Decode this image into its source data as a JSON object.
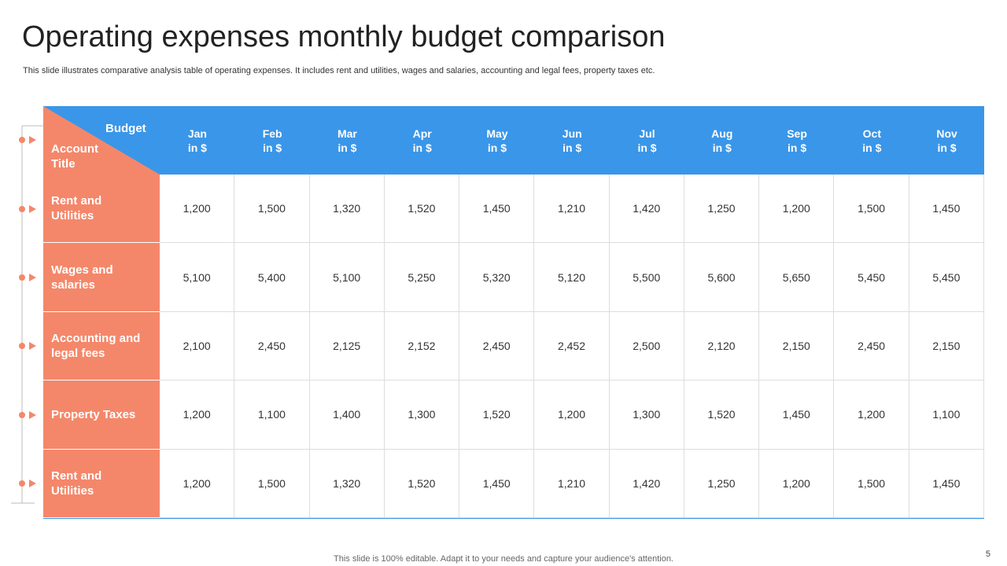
{
  "title": "Operating expenses monthly budget comparison",
  "subtitle": "This slide illustrates comparative analysis table of operating expenses. It includes rent and utilities, wages and salaries, accounting and legal fees, property taxes etc.",
  "table": {
    "corner_top": "Budget",
    "corner_bottom": "Account Title",
    "columns": [
      {
        "month": "Jan",
        "unit": "in $"
      },
      {
        "month": "Feb",
        "unit": "in $"
      },
      {
        "month": "Mar",
        "unit": "in $"
      },
      {
        "month": "Apr",
        "unit": "in $"
      },
      {
        "month": "May",
        "unit": "in $"
      },
      {
        "month": "Jun",
        "unit": "in $"
      },
      {
        "month": "Jul",
        "unit": "in $"
      },
      {
        "month": "Aug",
        "unit": "in $"
      },
      {
        "month": "Sep",
        "unit": "in $"
      },
      {
        "month": "Oct",
        "unit": "in $"
      },
      {
        "month": "Nov",
        "unit": "in $"
      }
    ],
    "rows": [
      {
        "account": "Rent and Utilities",
        "cells": [
          "1,200",
          "1,500",
          "1,320",
          "1,520",
          "1,450",
          "1,210",
          "1,420",
          "1,250",
          "1,200",
          "1,500",
          "1,450"
        ]
      },
      {
        "account": "Wages and salaries",
        "cells": [
          "5,100",
          "5,400",
          "5,100",
          "5,250",
          "5,320",
          "5,120",
          "5,500",
          "5,600",
          "5,650",
          "5,450",
          "5,450"
        ]
      },
      {
        "account": "Accounting and legal fees",
        "cells": [
          "2,100",
          "2,450",
          "2,125",
          "2,152",
          "2,450",
          "2,452",
          "2,500",
          "2,120",
          "2,150",
          "2,450",
          "2,150"
        ]
      },
      {
        "account": "Property Taxes",
        "cells": [
          "1,200",
          "1,100",
          "1,400",
          "1,300",
          "1,520",
          "1,200",
          "1,300",
          "1,520",
          "1,450",
          "1,200",
          "1,100"
        ]
      },
      {
        "account": "Rent and Utilities",
        "cells": [
          "1,200",
          "1,500",
          "1,320",
          "1,520",
          "1,450",
          "1,210",
          "1,420",
          "1,250",
          "1,200",
          "1,500",
          "1,450"
        ]
      }
    ]
  },
  "footer": "This slide is 100% editable. Adapt it to your needs and capture your audience's attention.",
  "page_number": "5"
}
